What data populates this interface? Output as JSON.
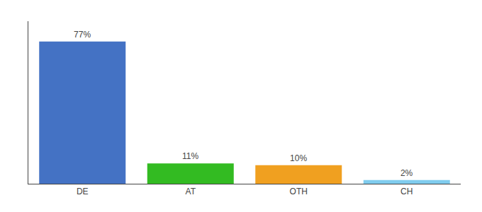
{
  "chart_data": {
    "type": "bar",
    "categories": [
      "DE",
      "AT",
      "OTH",
      "CH"
    ],
    "values": [
      77,
      11,
      10,
      2
    ],
    "value_labels": [
      "77%",
      "11%",
      "10%",
      "2%"
    ],
    "colors": [
      "#4472c4",
      "#33bb22",
      "#f0a020",
      "#80ccee"
    ],
    "ylim": [
      0,
      88
    ],
    "data_labels": true,
    "tick_labels": "x",
    "grid": false
  }
}
